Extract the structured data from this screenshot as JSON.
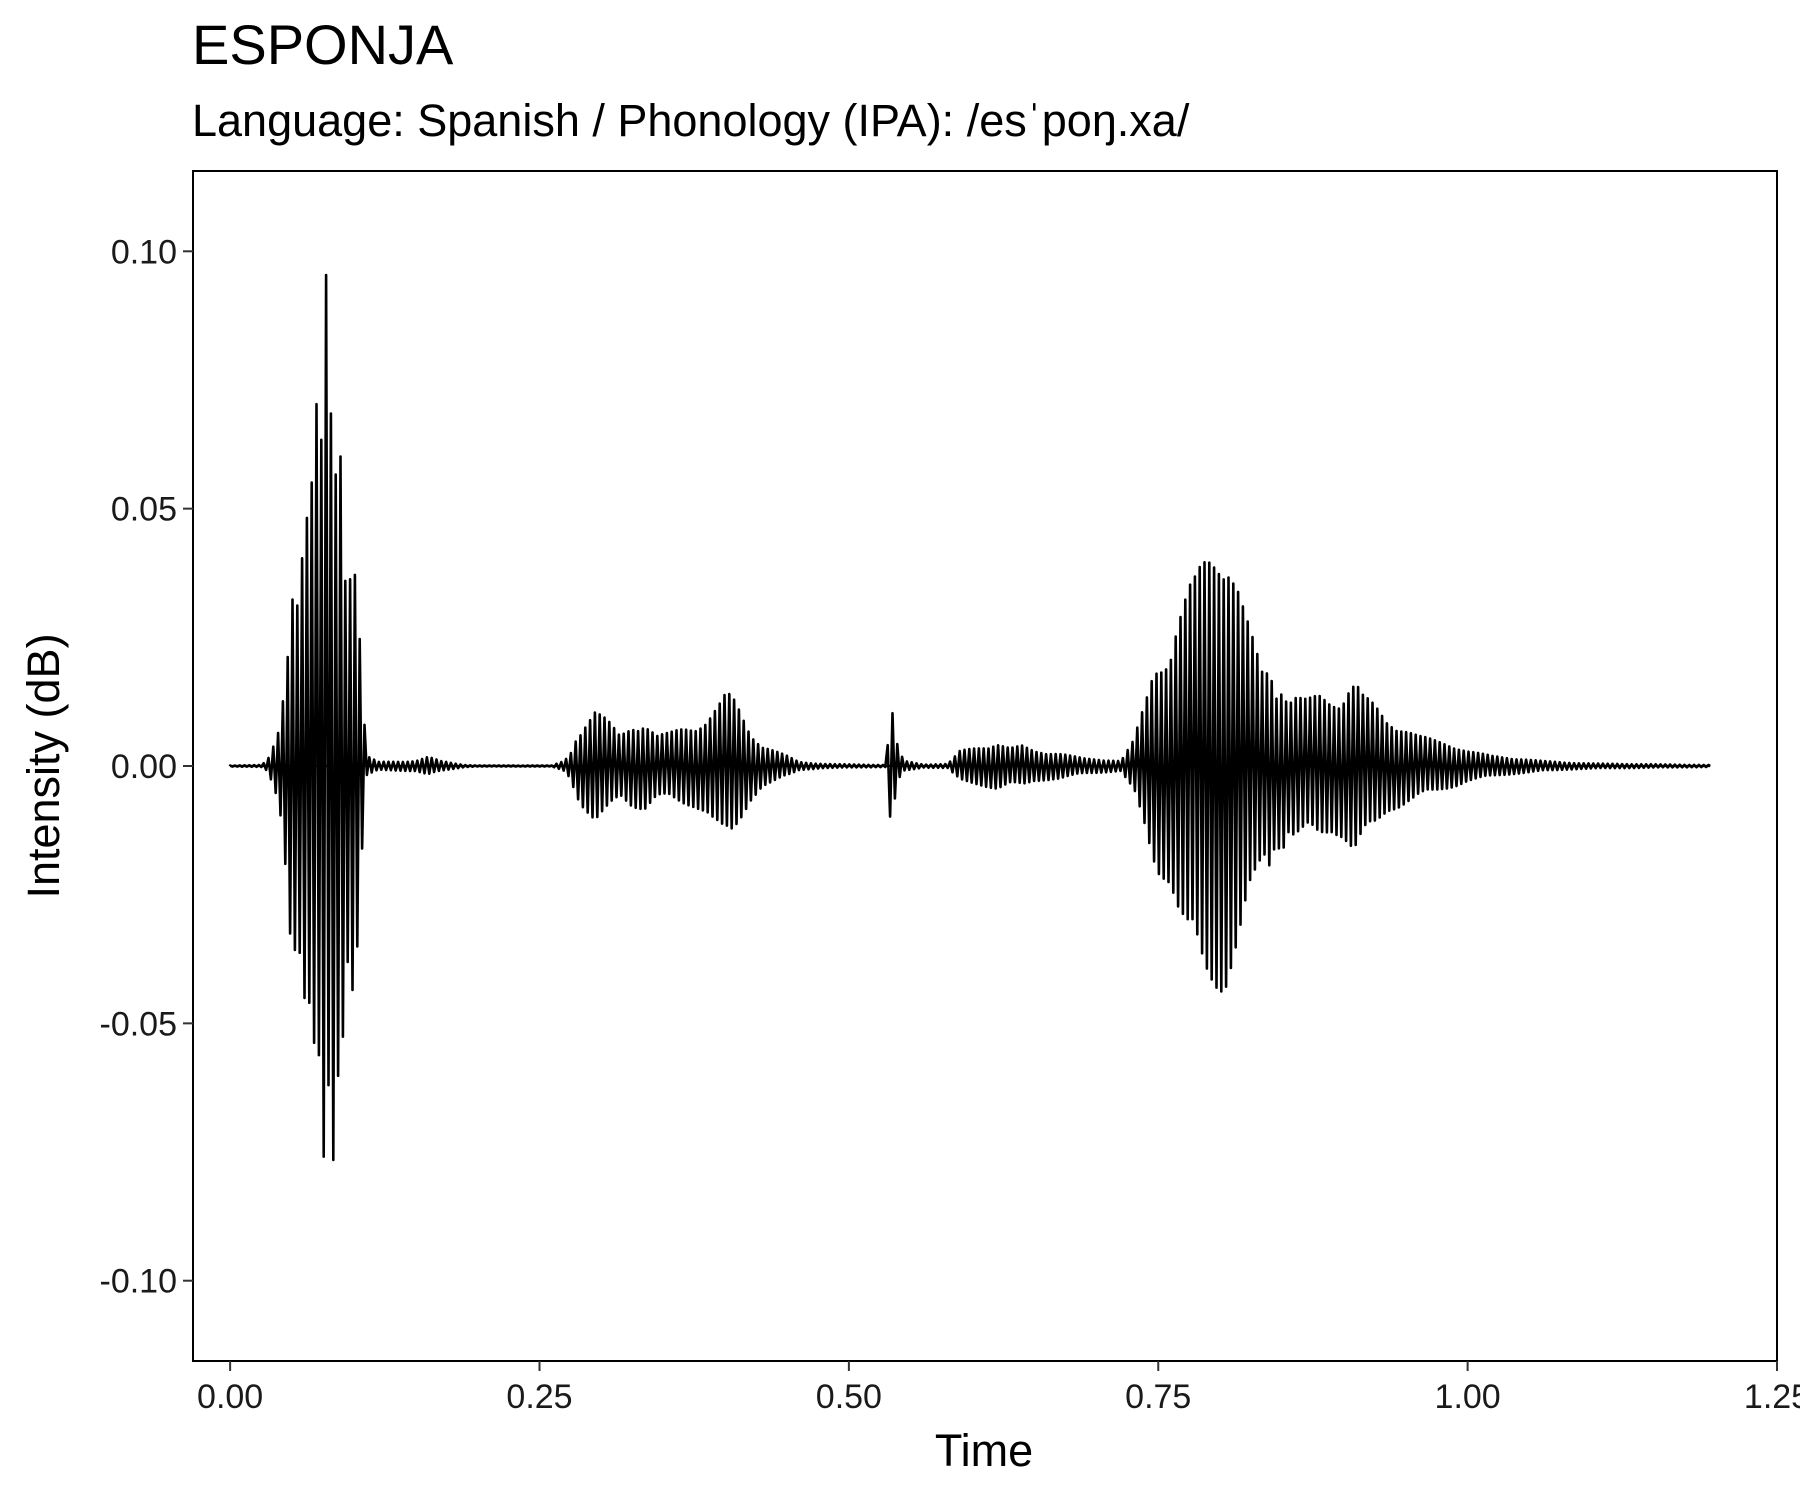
{
  "chart_data": {
    "type": "line",
    "title": "ESPONJA",
    "subtitle": "Language: Spanish / Phonology (IPA): /esˈpoŋ.xa/",
    "xlabel": "Time",
    "ylabel": "Intensity (dB)",
    "xlim": [
      -0.03,
      1.25
    ],
    "ylim": [
      -0.1156,
      0.1156
    ],
    "x_ticks": [
      {
        "value": 0.0,
        "label": "0.00"
      },
      {
        "value": 0.25,
        "label": "0.25"
      },
      {
        "value": 0.5,
        "label": "0.50"
      },
      {
        "value": 0.75,
        "label": "0.75"
      },
      {
        "value": 1.0,
        "label": "1.00"
      },
      {
        "value": 1.25,
        "label": "1.25"
      }
    ],
    "y_ticks": [
      {
        "value": 0.1,
        "label": "0.10"
      },
      {
        "value": 0.05,
        "label": "0.05"
      },
      {
        "value": 0.0,
        "label": "0.00"
      },
      {
        "value": -0.05,
        "label": "-0.05"
      },
      {
        "value": -0.1,
        "label": "-0.10"
      }
    ],
    "grid": false,
    "series": [
      {
        "color": "#000000",
        "description": "waveform amplitude envelope (peak absolute amplitude vs time)",
        "envelope": [
          [
            0.0,
            0.0001
          ],
          [
            0.025,
            0.0002
          ],
          [
            0.03,
            0.001
          ],
          [
            0.035,
            0.004
          ],
          [
            0.04,
            0.008
          ],
          [
            0.045,
            0.02
          ],
          [
            0.05,
            0.038
          ],
          [
            0.055,
            0.034
          ],
          [
            0.06,
            0.048
          ],
          [
            0.065,
            0.052
          ],
          [
            0.07,
            0.071
          ],
          [
            0.074,
            0.063
          ],
          [
            0.077,
            0.106
          ],
          [
            0.08,
            0.06
          ],
          [
            0.083,
            0.084
          ],
          [
            0.086,
            0.055
          ],
          [
            0.089,
            0.07
          ],
          [
            0.092,
            0.046
          ],
          [
            0.095,
            0.038
          ],
          [
            0.098,
            0.045
          ],
          [
            0.102,
            0.04
          ],
          [
            0.106,
            0.02
          ],
          [
            0.11,
            0.002
          ],
          [
            0.12,
            0.0008
          ],
          [
            0.15,
            0.001
          ],
          [
            0.16,
            0.0018
          ],
          [
            0.17,
            0.001
          ],
          [
            0.18,
            0.0006
          ],
          [
            0.19,
            0.0002
          ],
          [
            0.2,
            0.0001
          ],
          [
            0.26,
            0.0001
          ],
          [
            0.27,
            0.001
          ],
          [
            0.275,
            0.0025
          ],
          [
            0.28,
            0.006
          ],
          [
            0.285,
            0.008
          ],
          [
            0.29,
            0.0095
          ],
          [
            0.295,
            0.011
          ],
          [
            0.3,
            0.01
          ],
          [
            0.305,
            0.009
          ],
          [
            0.315,
            0.006
          ],
          [
            0.325,
            0.008
          ],
          [
            0.335,
            0.0085
          ],
          [
            0.345,
            0.006
          ],
          [
            0.355,
            0.0065
          ],
          [
            0.365,
            0.0075
          ],
          [
            0.375,
            0.008
          ],
          [
            0.385,
            0.009
          ],
          [
            0.395,
            0.012
          ],
          [
            0.4,
            0.014
          ],
          [
            0.405,
            0.014
          ],
          [
            0.41,
            0.012
          ],
          [
            0.42,
            0.007
          ],
          [
            0.43,
            0.004
          ],
          [
            0.44,
            0.003
          ],
          [
            0.45,
            0.002
          ],
          [
            0.46,
            0.0008
          ],
          [
            0.48,
            0.0004
          ],
          [
            0.53,
            0.0002
          ],
          [
            0.532,
            0.006
          ],
          [
            0.534,
            0.013
          ],
          [
            0.536,
            0.009
          ],
          [
            0.54,
            0.003
          ],
          [
            0.545,
            0.001
          ],
          [
            0.56,
            0.0003
          ],
          [
            0.58,
            0.0004
          ],
          [
            0.59,
            0.003
          ],
          [
            0.6,
            0.0035
          ],
          [
            0.61,
            0.004
          ],
          [
            0.62,
            0.0045
          ],
          [
            0.63,
            0.0035
          ],
          [
            0.64,
            0.004
          ],
          [
            0.65,
            0.003
          ],
          [
            0.67,
            0.0025
          ],
          [
            0.69,
            0.0015
          ],
          [
            0.71,
            0.0012
          ],
          [
            0.72,
            0.001
          ],
          [
            0.73,
            0.005
          ],
          [
            0.735,
            0.009
          ],
          [
            0.74,
            0.013
          ],
          [
            0.745,
            0.018
          ],
          [
            0.75,
            0.021
          ],
          [
            0.76,
            0.023
          ],
          [
            0.765,
            0.028
          ],
          [
            0.775,
            0.035
          ],
          [
            0.78,
            0.037
          ],
          [
            0.785,
            0.04
          ],
          [
            0.79,
            0.042
          ],
          [
            0.795,
            0.043
          ],
          [
            0.8,
            0.044
          ],
          [
            0.805,
            0.043
          ],
          [
            0.81,
            0.039
          ],
          [
            0.815,
            0.035
          ],
          [
            0.82,
            0.03
          ],
          [
            0.825,
            0.026
          ],
          [
            0.83,
            0.022
          ],
          [
            0.835,
            0.018
          ],
          [
            0.84,
            0.02
          ],
          [
            0.845,
            0.015
          ],
          [
            0.85,
            0.017
          ],
          [
            0.855,
            0.013
          ],
          [
            0.86,
            0.014
          ],
          [
            0.87,
            0.013
          ],
          [
            0.88,
            0.014
          ],
          [
            0.89,
            0.013
          ],
          [
            0.9,
            0.014
          ],
          [
            0.905,
            0.016
          ],
          [
            0.91,
            0.0165
          ],
          [
            0.915,
            0.014
          ],
          [
            0.925,
            0.012
          ],
          [
            0.935,
            0.009
          ],
          [
            0.945,
            0.008
          ],
          [
            0.96,
            0.006
          ],
          [
            0.975,
            0.005
          ],
          [
            0.99,
            0.004
          ],
          [
            1.0,
            0.003
          ],
          [
            1.02,
            0.002
          ],
          [
            1.04,
            0.0015
          ],
          [
            1.06,
            0.001
          ],
          [
            1.08,
            0.0007
          ],
          [
            1.1,
            0.0005
          ],
          [
            1.13,
            0.0004
          ],
          [
            1.16,
            0.0003
          ],
          [
            1.196,
            0.0002
          ]
        ]
      }
    ]
  }
}
